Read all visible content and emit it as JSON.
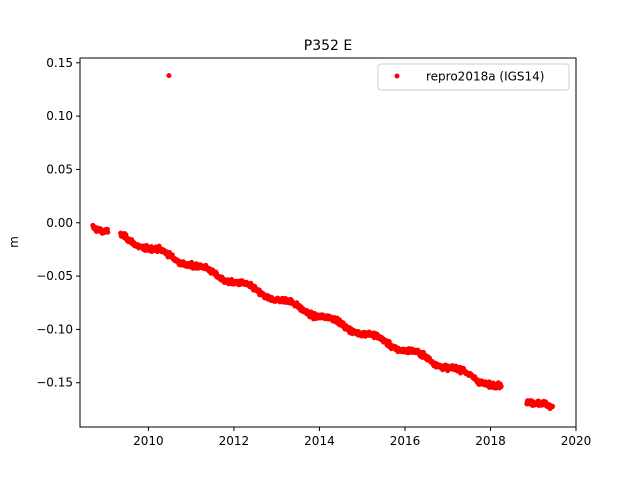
{
  "chart_data": {
    "type": "scatter",
    "title": "P352 E",
    "xlabel": "",
    "ylabel": "m",
    "xlim": [
      2008.4,
      2020.0
    ],
    "ylim": [
      -0.1915,
      0.1545
    ],
    "xticks": [
      2010,
      2012,
      2014,
      2016,
      2018,
      2020
    ],
    "yticks": [
      -0.15,
      -0.1,
      -0.05,
      0.0,
      0.05,
      0.1,
      0.15
    ],
    "xtick_labels": [
      "2010",
      "2012",
      "2014",
      "2016",
      "2018",
      "2020"
    ],
    "ytick_labels": [
      "−0.15",
      "−0.10",
      "−0.05",
      "0.00",
      "0.05",
      "0.10",
      "0.15"
    ],
    "grid": false,
    "legend_position": "top-right",
    "series": [
      {
        "name": "repro2018a (IGS14)",
        "color": "#ff0000",
        "marker": "circle",
        "segments": [
          {
            "x_start": 2008.7,
            "x_end": 2009.05,
            "y_start": -0.002,
            "y_end": -0.008
          },
          {
            "x_start": 2009.35,
            "x_end": 2018.25,
            "y_start": -0.013,
            "y_end": -0.155
          },
          {
            "x_start": 2018.85,
            "x_end": 2019.45,
            "y_start": -0.166,
            "y_end": -0.175
          }
        ],
        "outliers": [
          {
            "x": 2010.48,
            "y": 0.138
          }
        ]
      }
    ]
  }
}
